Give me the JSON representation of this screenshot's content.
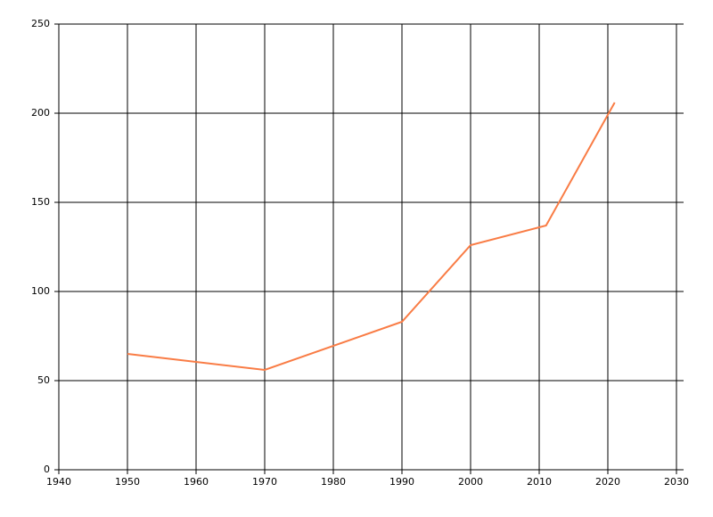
{
  "chart_data": {
    "type": "line",
    "x": [
      1950,
      1970,
      1990,
      2000,
      2011,
      2021
    ],
    "series": [
      {
        "color": "#f97c45",
        "values": [
          65,
          56,
          83,
          126,
          137,
          206
        ]
      }
    ],
    "xlim": [
      1940,
      2030
    ],
    "xticks": [
      1940,
      1950,
      1960,
      1970,
      1980,
      1990,
      2000,
      2010,
      2020,
      2030
    ],
    "ylim": [
      0,
      250
    ],
    "yticks": [
      0,
      50,
      100,
      150,
      200,
      250
    ],
    "grid": true
  }
}
